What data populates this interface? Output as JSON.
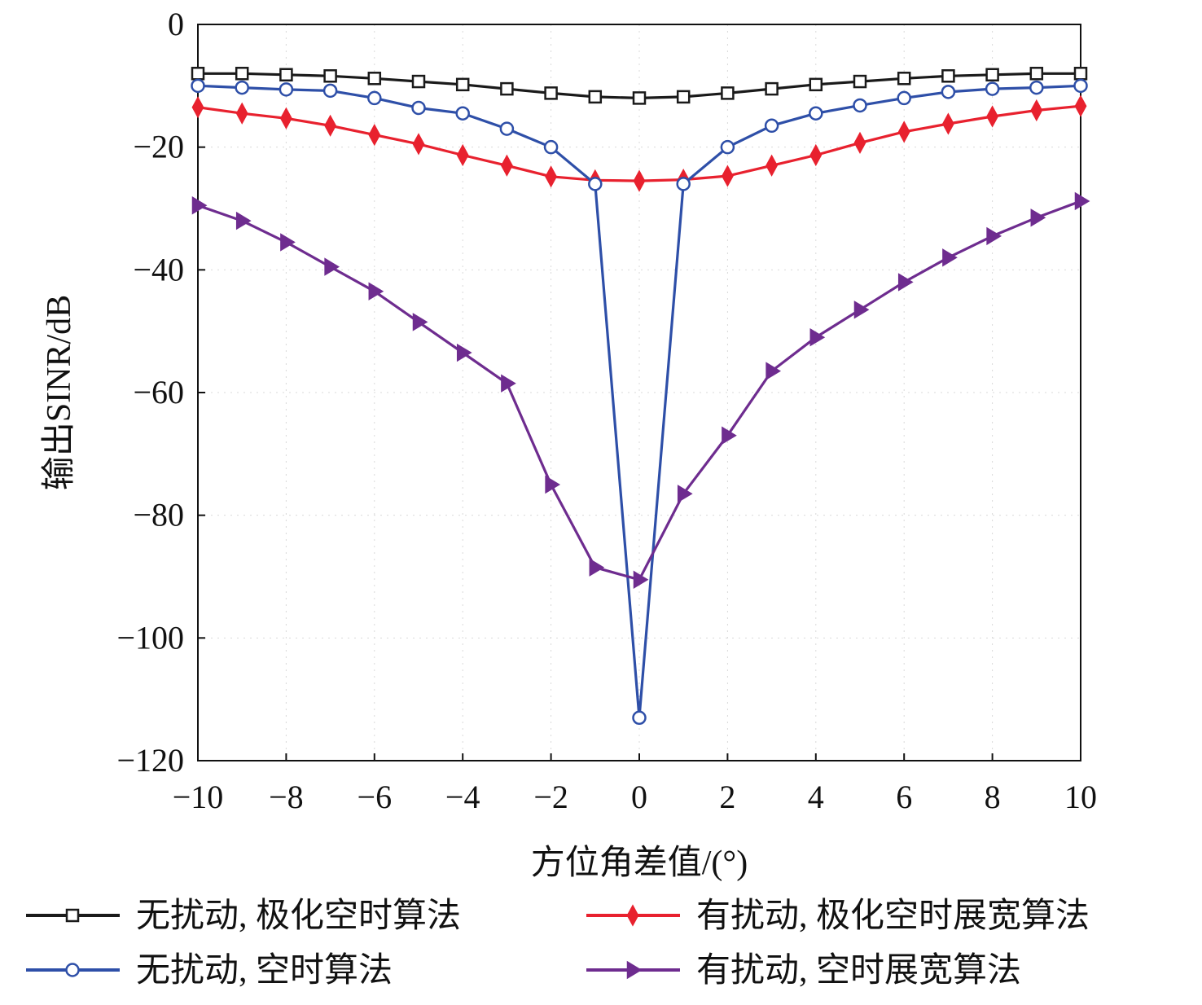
{
  "chart_data": {
    "type": "line",
    "title": "",
    "xlabel": "方位角差值/(°)",
    "ylabel": "输出SINR/dB",
    "xlim": [
      -10,
      10
    ],
    "ylim": [
      -120,
      0
    ],
    "xticks": [
      -10,
      -8,
      -6,
      -4,
      -2,
      0,
      2,
      4,
      6,
      8,
      10
    ],
    "yticks": [
      0,
      -20,
      -40,
      -60,
      -80,
      -100,
      -120
    ],
    "xtick_labels": [
      "−10",
      "−8",
      "−6",
      "−4",
      "−2",
      "0",
      "2",
      "4",
      "6",
      "8",
      "10"
    ],
    "ytick_labels": [
      "0",
      "−20",
      "−40",
      "−60",
      "−80",
      "−100",
      "−120"
    ],
    "grid": true,
    "legend_position": "bottom",
    "x": [
      -10,
      -9,
      -8,
      -7,
      -6,
      -5,
      -4,
      -3,
      -2,
      -1,
      0,
      1,
      2,
      3,
      4,
      5,
      6,
      7,
      8,
      9,
      10
    ],
    "series": [
      {
        "name": "无扰动, 极化空时算法",
        "color": "#1a1a1a",
        "marker": "square",
        "values": [
          -8,
          -8,
          -8.2,
          -8.4,
          -8.8,
          -9.3,
          -9.8,
          -10.5,
          -11.2,
          -11.8,
          -12,
          -11.8,
          -11.2,
          -10.5,
          -9.8,
          -9.3,
          -8.8,
          -8.4,
          -8.2,
          -8,
          -8
        ]
      },
      {
        "name": "有扰动, 极化空时展宽算法",
        "color": "#e8212e",
        "marker": "diamond",
        "values": [
          -13.5,
          -14.5,
          -15.3,
          -16.5,
          -18,
          -19.5,
          -21.3,
          -23,
          -24.8,
          -25.4,
          -25.5,
          -25.3,
          -24.7,
          -23,
          -21.3,
          -19.3,
          -17.5,
          -16.2,
          -15,
          -14,
          -13.3
        ]
      },
      {
        "name": "无扰动, 空时算法",
        "color": "#2e4fa8",
        "marker": "circle",
        "values": [
          -10,
          -10.3,
          -10.6,
          -10.8,
          -12,
          -13.6,
          -14.5,
          -17,
          -20,
          -26,
          -113,
          -26,
          -20,
          -16.5,
          -14.5,
          -13.2,
          -12,
          -11,
          -10.5,
          -10.3,
          -10
        ]
      },
      {
        "name": "有扰动, 空时展宽算法",
        "color": "#6e2c8f",
        "marker": "triangle-right",
        "values": [
          -29.5,
          -32,
          -35.5,
          -39.5,
          -43.5,
          -48.5,
          -53.5,
          -58.5,
          -75,
          -88.5,
          -90.5,
          -76.5,
          -67,
          -56.5,
          -51,
          -46.5,
          -42,
          -38,
          -34.5,
          -31.5,
          -28.8
        ]
      }
    ]
  }
}
